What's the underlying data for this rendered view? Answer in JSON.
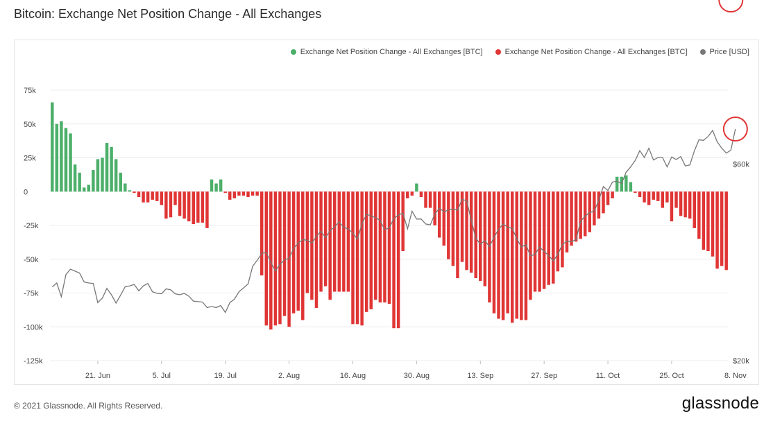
{
  "title": "Bitcoin: Exchange Net Position Change - All Exchanges",
  "footer": "© 2021 Glassnode. All Rights Reserved.",
  "brand": "glassnode",
  "colors": {
    "positive": "#4caf6a",
    "negative": "#e03535",
    "price": "#777777",
    "annotation": "#e03535"
  },
  "legend": [
    {
      "label": "Exchange Net Position Change - All Exchanges [BTC]",
      "color": "#4caf6a"
    },
    {
      "label": "Exchange Net Position Change - All Exchanges [BTC]",
      "color": "#e03535"
    },
    {
      "label": "Price [USD]",
      "color": "#777777"
    }
  ],
  "chart_data": {
    "type": "bar",
    "title": "Bitcoin: Exchange Net Position Change - All Exchanges",
    "ylim": [
      -125000,
      75000
    ],
    "y_ticks": [
      "75k",
      "50k",
      "25k",
      "0",
      "-25k",
      "-50k",
      "-75k",
      "-100k",
      "-125k"
    ],
    "y_tick_values": [
      75000,
      50000,
      25000,
      0,
      -25000,
      -50000,
      -75000,
      -100000,
      -125000
    ],
    "right_ticks": [
      "$60k",
      "$20k"
    ],
    "right_tick_values": [
      60000,
      20000
    ],
    "price_range": [
      20000,
      75000
    ],
    "x_ticks": [
      "21. Jun",
      "5. Jul",
      "19. Jul",
      "2. Aug",
      "16. Aug",
      "30. Aug",
      "13. Sep",
      "27. Sep",
      "11. Oct",
      "25. Oct",
      "8. Nov"
    ],
    "x_tick_index": [
      10,
      24,
      38,
      52,
      66,
      80,
      94,
      108,
      122,
      136,
      150
    ],
    "grid": true,
    "legend_position": "top-right",
    "series": [
      {
        "name": "Exchange Net Position Change - All Exchanges [BTC]",
        "values": [
          66000,
          50000,
          52000,
          47000,
          43000,
          20000,
          14000,
          3000,
          5000,
          16000,
          24000,
          25000,
          36000,
          33000,
          24000,
          14000,
          6000,
          1000,
          -1000,
          -4000,
          -8000,
          -8000,
          -6000,
          -7000,
          -10000,
          -20000,
          -19000,
          -10000,
          -18000,
          -20000,
          -22000,
          -24000,
          -23000,
          -23000,
          -27000,
          9000,
          6000,
          9000,
          -1000,
          -6000,
          -5000,
          -3000,
          -3000,
          -4000,
          -3000,
          -3000,
          -62000,
          -99000,
          -102000,
          -99000,
          -98000,
          -92000,
          -100000,
          -90000,
          -88000,
          -95000,
          -75000,
          -80000,
          -86000,
          -74000,
          -70000,
          -80000,
          -74000,
          -74000,
          -74000,
          -74000,
          -98000,
          -98000,
          -99000,
          -89000,
          -87000,
          -80000,
          -82000,
          -82000,
          -83000,
          -101000,
          -101000,
          -44000,
          -5000,
          -3000,
          6000,
          -4000,
          -12000,
          -12000,
          -25000,
          -34000,
          -40000,
          -50000,
          -55000,
          -64000,
          -52000,
          -58000,
          -60000,
          -64000,
          -66000,
          -70000,
          -82000,
          -90000,
          -94000,
          -95000,
          -90000,
          -97000,
          -94000,
          -95000,
          -95000,
          -80000,
          -74000,
          -74000,
          -72000,
          -69000,
          -68000,
          -59000,
          -56000,
          -45000,
          -40000,
          -37000,
          -35000,
          -33000,
          -30000,
          -25000,
          -20000,
          -16000,
          -10000,
          -5000,
          11000,
          11000,
          12000,
          7000,
          -1000,
          -4000,
          -8000,
          -10000,
          -6000,
          -7000,
          -12000,
          -8000,
          -22000,
          -12000,
          -18000,
          -19000,
          -20000,
          -27000,
          -35000,
          -43000,
          -44000,
          -48000,
          -57000,
          -55000,
          -58000
        ]
      },
      {
        "name": "Price [USD]",
        "values": [
          35000,
          35800,
          33000,
          37500,
          38600,
          38200,
          37800,
          36000,
          35800,
          35700,
          31800,
          32700,
          34700,
          33400,
          31700,
          33300,
          35000,
          35200,
          35500,
          34200,
          35200,
          35700,
          34000,
          33700,
          33600,
          34600,
          34400,
          33600,
          33400,
          33700,
          33100,
          32100,
          32000,
          31900,
          30800,
          31000,
          30800,
          31200,
          29800,
          31800,
          32500,
          34000,
          34800,
          35600,
          39200,
          40400,
          41800,
          42000,
          40000,
          38200,
          39600,
          40500,
          40800,
          42800,
          43900,
          44600,
          44500,
          43900,
          45300,
          46300,
          45000,
          46400,
          47200,
          48200,
          47100,
          46800,
          45900,
          44700,
          47800,
          49800,
          49400,
          49100,
          48500,
          46600,
          47000,
          48900,
          49600,
          50000,
          46800,
          50400,
          48800,
          48800,
          47800,
          47600,
          49800,
          51000,
          50300,
          50600,
          50800,
          50600,
          52800,
          52500,
          48600,
          44900,
          43700,
          44400,
          43200,
          45100,
          46700,
          47800,
          47100,
          46900,
          44800,
          43100,
          43600,
          41300,
          41600,
          43100,
          42200,
          41400,
          40300,
          41600,
          43600,
          44300,
          44200,
          44600,
          48300,
          49400,
          50100,
          50400,
          52600,
          55400,
          54600,
          56300,
          56500,
          56000,
          58300,
          59400,
          60700,
          62700,
          61300,
          63200,
          60800,
          61300,
          61300,
          59400,
          61400,
          60900,
          61500,
          59600,
          59800,
          62700,
          64900,
          64800,
          65600,
          66800,
          64500,
          63200,
          62200,
          62800,
          67100
        ]
      }
    ],
    "annotations": [
      {
        "shape": "circle",
        "series": "Price [USD]",
        "index": 150
      },
      {
        "shape": "circle",
        "series": "Exchange Net Position Change - All Exchanges [BTC]",
        "index": 149
      }
    ]
  }
}
